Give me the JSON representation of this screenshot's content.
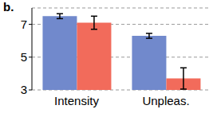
{
  "chart_data": {
    "type": "bar",
    "title": "b.",
    "categories": [
      "Intensity",
      "Unpleas."
    ],
    "series": [
      {
        "color": "#7189cc",
        "values": [
          7.5,
          6.3
        ],
        "errors": [
          0.15,
          0.15
        ]
      },
      {
        "color": "#f26b5b",
        "values": [
          7.1,
          3.7
        ],
        "errors": [
          0.4,
          0.65
        ]
      }
    ],
    "ylim": [
      3,
      8
    ],
    "yticks": [
      3,
      5,
      7
    ],
    "grid": true
  }
}
